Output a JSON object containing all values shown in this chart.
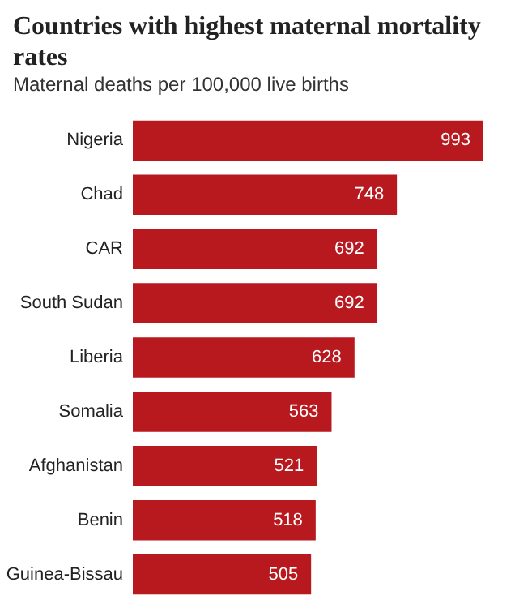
{
  "chart_data": {
    "type": "bar",
    "orientation": "horizontal",
    "title": "Countries with highest maternal mortality rates",
    "subtitle": "Maternal deaths per 100,000 live births",
    "categories": [
      "Nigeria",
      "Chad",
      "CAR",
      "South Sudan",
      "Liberia",
      "Somalia",
      "Afghanistan",
      "Benin",
      "Guinea-Bissau"
    ],
    "values": [
      993,
      748,
      692,
      692,
      628,
      563,
      521,
      518,
      505
    ],
    "color": "#b8191f",
    "data_labels": true
  }
}
